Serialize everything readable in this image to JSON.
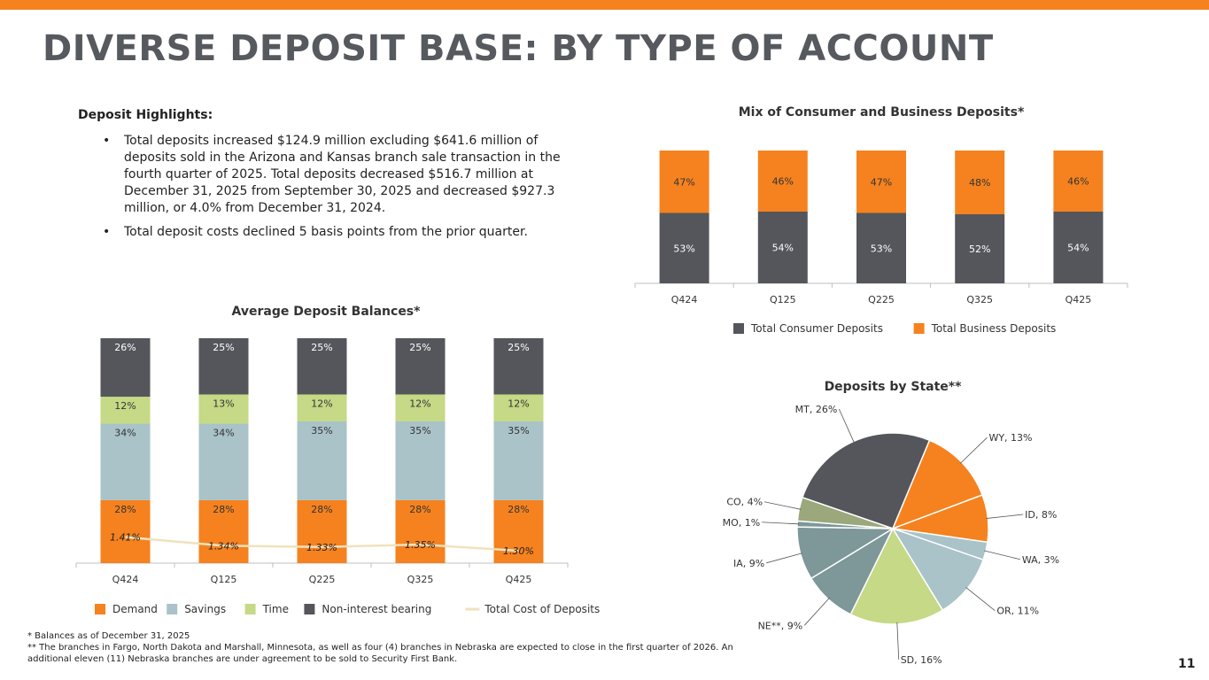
{
  "slide": {
    "title": "DIVERSE DEPOSIT BASE: BY TYPE OF ACCOUNT",
    "page_number": "11",
    "accent_color": "#f5821f"
  },
  "highlights": {
    "heading": "Deposit Highlights:",
    "bullets": [
      "Total deposits increased $124.9 million excluding $641.6 million of deposits sold in the Arizona and Kansas branch sale transaction in the fourth quarter of 2025. Total deposits decreased $516.7 million at December 31, 2025 from September 30, 2025 and decreased $927.3 million, or 4.0% from December 31, 2024.",
      "Total deposit costs declined 5 basis points from the prior quarter."
    ]
  },
  "footnotes": {
    "note1": "* Balances as of December 31, 2025",
    "note2": "** The branches in Fargo, North Dakota and Marshall, Minnesota, as well as four (4) branches in Nebraska are expected to close in the first quarter of 2026.  An additional eleven (11) Nebraska branches are under agreement to be sold to Security First Bank."
  },
  "chart_data": [
    {
      "id": "mix",
      "type": "bar",
      "stacked": true,
      "title": "Mix of Consumer and Business Deposits*",
      "categories": [
        "Q424",
        "Q125",
        "Q225",
        "Q325",
        "Q425"
      ],
      "series": [
        {
          "name": "Total Consumer Deposits",
          "color": "#54565b",
          "values": [
            53,
            54,
            53,
            52,
            54
          ]
        },
        {
          "name": "Total Business Deposits",
          "color": "#f5821f",
          "values": [
            47,
            46,
            47,
            48,
            46
          ]
        }
      ],
      "ylim": [
        0,
        100
      ],
      "legend": "bottom"
    },
    {
      "id": "avg",
      "type": "bar",
      "stacked": true,
      "title": "Average Deposit Balances*",
      "categories": [
        "Q424",
        "Q125",
        "Q225",
        "Q325",
        "Q425"
      ],
      "series": [
        {
          "name": "Demand",
          "color": "#f5821f",
          "values": [
            28,
            28,
            28,
            28,
            28
          ]
        },
        {
          "name": "Savings",
          "color": "#a9c3c8",
          "values": [
            34,
            34,
            35,
            35,
            35
          ]
        },
        {
          "name": "Time",
          "color": "#c5d986",
          "values": [
            12,
            13,
            12,
            12,
            12
          ]
        },
        {
          "name": "Non-interest bearing",
          "color": "#54565b",
          "values": [
            26,
            25,
            25,
            25,
            25
          ]
        }
      ],
      "line_series": {
        "name": "Total Cost of Deposits",
        "color": "#f0e2bc",
        "values": [
          1.41,
          1.34,
          1.33,
          1.35,
          1.3
        ],
        "labels": [
          "1.41%",
          "1.34%",
          "1.33%",
          "1.35%",
          "1.30%"
        ]
      },
      "ylim": [
        0,
        100
      ],
      "legend": "bottom"
    },
    {
      "id": "state",
      "type": "pie",
      "title": "Deposits by State**",
      "slices": [
        {
          "label": "MT",
          "value": 26,
          "color": "#54565b"
        },
        {
          "label": "WY",
          "value": 13,
          "color": "#f5821f"
        },
        {
          "label": "ID",
          "value": 8,
          "color": "#f5821f"
        },
        {
          "label": "WA",
          "value": 3,
          "color": "#a9c3c8"
        },
        {
          "label": "OR",
          "value": 11,
          "color": "#a9c3c8"
        },
        {
          "label": "SD",
          "value": 16,
          "color": "#c5d986"
        },
        {
          "label": "NE**",
          "value": 9,
          "color": "#7e9799"
        },
        {
          "label": "IA",
          "value": 9,
          "color": "#7e9799"
        },
        {
          "label": "MO",
          "value": 1,
          "color": "#7e9799"
        },
        {
          "label": "CO",
          "value": 4,
          "color": "#9aa87c"
        }
      ],
      "legend": "none"
    }
  ]
}
